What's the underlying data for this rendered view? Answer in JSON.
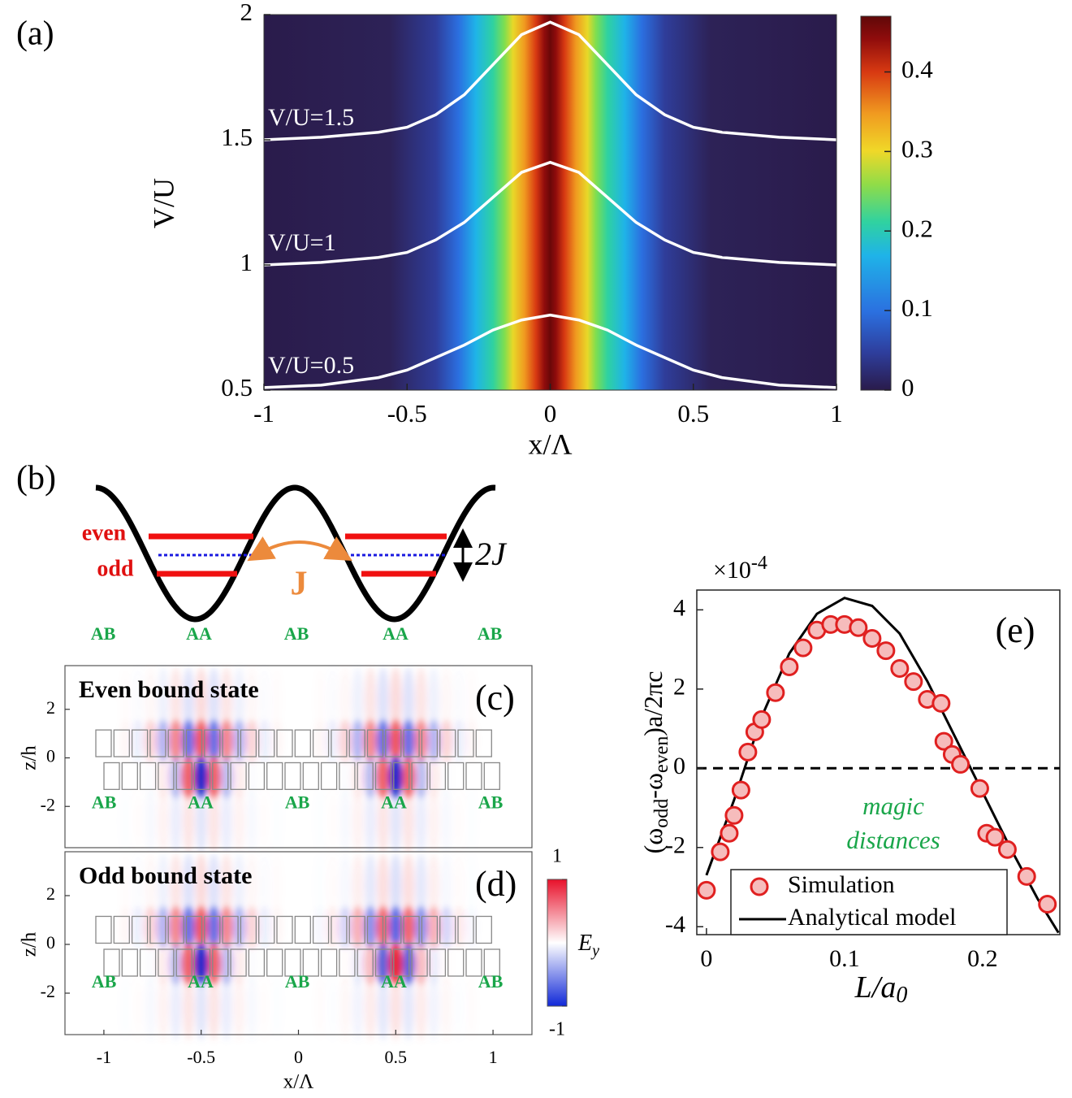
{
  "chart_data": [
    {
      "type": "heatmap",
      "label": "(a)",
      "xlabel": "x/Λ",
      "ylabel": "V/U",
      "xlim": [
        -1,
        1
      ],
      "ylim": [
        0.5,
        2
      ],
      "xticks": [
        -1,
        -0.5,
        0,
        0.5,
        1
      ],
      "yticks": [
        0.5,
        1,
        1.5,
        2
      ],
      "colorbar": {
        "lim": [
          0,
          0.47
        ],
        "ticks": [
          0,
          0.1,
          0.2,
          0.3,
          0.4
        ]
      },
      "x": [
        -1,
        -0.8,
        -0.6,
        -0.5,
        -0.4,
        -0.3,
        -0.2,
        -0.1,
        0,
        0.1,
        0.2,
        0.3,
        0.4,
        0.5,
        0.6,
        0.8,
        1
      ],
      "series": [
        {
          "name": "V/U=1.5",
          "color": "#ffffff",
          "values": [
            1.5,
            1.51,
            1.53,
            1.55,
            1.6,
            1.68,
            1.8,
            1.92,
            1.97,
            1.92,
            1.8,
            1.68,
            1.6,
            1.55,
            1.53,
            1.51,
            1.5
          ]
        },
        {
          "name": "V/U=1",
          "color": "#ffffff",
          "values": [
            1.0,
            1.01,
            1.03,
            1.05,
            1.1,
            1.17,
            1.27,
            1.37,
            1.41,
            1.37,
            1.27,
            1.17,
            1.1,
            1.05,
            1.03,
            1.01,
            1.0
          ]
        },
        {
          "name": "V/U=0.5",
          "color": "#ffffff",
          "values": [
            0.51,
            0.52,
            0.55,
            0.58,
            0.63,
            0.68,
            0.74,
            0.78,
            0.8,
            0.78,
            0.74,
            0.68,
            0.63,
            0.58,
            0.55,
            0.52,
            0.51
          ]
        }
      ]
    },
    {
      "type": "field",
      "label": "(c)",
      "title": "Even bound state",
      "ylabel": "z/h",
      "xlim": [
        -1.2,
        1.2
      ],
      "ylim": [
        -3.7,
        3.8
      ],
      "yticks": [
        -2,
        0,
        2
      ],
      "sites": [
        "AB",
        "AA",
        "AB",
        "AA",
        "AB"
      ]
    },
    {
      "type": "field",
      "label": "(d)",
      "title": "Odd bound state",
      "ylabel": "z/h",
      "xlabel": "x/Λ",
      "xlim": [
        -1.2,
        1.2
      ],
      "ylim": [
        -3.7,
        3.8
      ],
      "xticks": [
        -1,
        -0.5,
        0,
        0.5,
        1
      ],
      "yticks": [
        -2,
        0,
        2
      ],
      "sites": [
        "AB",
        "AA",
        "AB",
        "AA",
        "AB"
      ],
      "colorbar": {
        "lim": [
          -1,
          1
        ],
        "ticks": [
          -1,
          1
        ],
        "label": "E",
        "label_sub": "y"
      }
    },
    {
      "type": "scatter-line",
      "label": "(e)",
      "xlabel": "L/a",
      "xlabel_sub": "0",
      "ylabel": [
        "(ω",
        "odd",
        "-ω",
        "even",
        ")a/2πc"
      ],
      "y_scale_label": "×10",
      "y_scale_exp": "-4",
      "xlim": [
        -0.007,
        0.256
      ],
      "ylim": [
        -4.2,
        4.5
      ],
      "xticks": [
        0,
        0.1,
        0.2
      ],
      "yticks": [
        -4,
        -2,
        0,
        2,
        4
      ],
      "reference_line": 0,
      "legend": "lower left",
      "annotation": [
        "magic",
        "distances"
      ],
      "series": [
        {
          "name": "Simulation",
          "color": "#e02020",
          "x": [
            0.0,
            0.01,
            0.0165,
            0.02,
            0.025,
            0.03,
            0.035,
            0.04,
            0.05,
            0.06,
            0.07,
            0.08,
            0.09,
            0.1,
            0.11,
            0.12,
            0.13,
            0.14,
            0.15,
            0.16,
            0.17,
            0.172,
            0.178,
            0.184,
            0.198,
            0.203,
            0.209,
            0.218,
            0.232,
            0.247
          ],
          "values": [
            -3.08,
            -2.11,
            -1.64,
            -1.19,
            -0.55,
            0.41,
            0.92,
            1.23,
            1.91,
            2.56,
            3.04,
            3.49,
            3.63,
            3.63,
            3.55,
            3.28,
            2.97,
            2.52,
            2.19,
            1.74,
            1.64,
            0.68,
            0.35,
            0.1,
            -0.51,
            -1.64,
            -1.74,
            -2.05,
            -2.73,
            -3.43
          ]
        },
        {
          "name": "Analytical model",
          "color": "#000000",
          "x": [
            0,
            0.02,
            0.04,
            0.06,
            0.08,
            0.1,
            0.12,
            0.14,
            0.16,
            0.18,
            0.2,
            0.22,
            0.24,
            0.255
          ],
          "values": [
            -2.7,
            -0.8,
            1.3,
            2.9,
            3.9,
            4.3,
            4.1,
            3.4,
            2.2,
            0.8,
            -0.6,
            -2.0,
            -3.3,
            -4.15
          ]
        }
      ]
    }
  ],
  "diagram": {
    "label": "(b)",
    "levels": [
      "even",
      "odd"
    ],
    "coupling": "J",
    "splitting": "2J",
    "sites": [
      "AB",
      "AA",
      "AB",
      "AA",
      "AB"
    ]
  }
}
